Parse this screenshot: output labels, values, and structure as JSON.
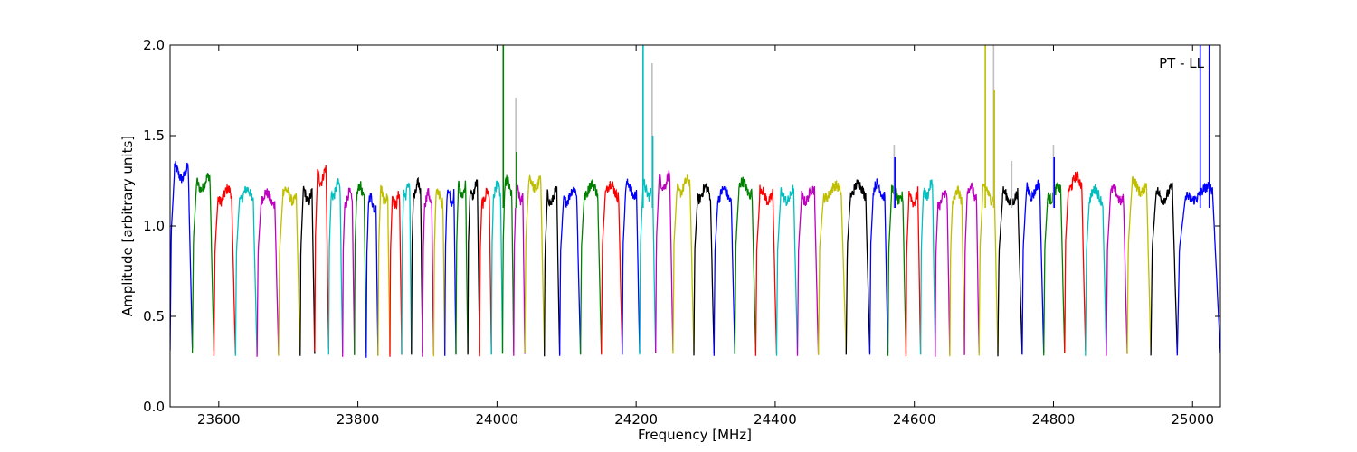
{
  "chart_data": {
    "type": "line",
    "annotation": "PT - LL",
    "xlabel": "Frequency [MHz]",
    "ylabel": "Amplitude [arbitrary units]",
    "xlim": [
      23530,
      25040
    ],
    "ylim": [
      0.0,
      2.0
    ],
    "x_ticks": [
      23600,
      23800,
      24000,
      24200,
      24400,
      24600,
      24800,
      25000
    ],
    "y_ticks": [
      0.0,
      0.5,
      1.0,
      1.5,
      2.0
    ],
    "x_tick_labels": [
      "23600",
      "23800",
      "24000",
      "24200",
      "24400",
      "24600",
      "24800",
      "25000"
    ],
    "y_tick_labels": [
      "0.0",
      "0.5",
      "1.0",
      "1.5",
      "2.0"
    ],
    "grid": false,
    "colors": [
      "#0000ff",
      "#008000",
      "#ff0000",
      "#00bfbf",
      "#bf00bf",
      "#bfbf00",
      "#000000"
    ],
    "ghost_color": "#bfbfbf",
    "channel_width_mhz": 3.5,
    "series": [
      {
        "color": "#0000ff",
        "start": 23530,
        "end": 23562,
        "plateau": 1.3
      },
      {
        "color": "#008000",
        "start": 23562,
        "end": 23593,
        "plateau": 1.24
      },
      {
        "color": "#ff0000",
        "start": 23593,
        "end": 23624,
        "plateau": 1.17
      },
      {
        "color": "#00bfbf",
        "start": 23624,
        "end": 23655,
        "plateau": 1.17
      },
      {
        "color": "#bf00bf",
        "start": 23655,
        "end": 23686,
        "plateau": 1.15
      },
      {
        "color": "#bfbf00",
        "start": 23686,
        "end": 23717,
        "plateau": 1.17
      },
      {
        "color": "#000000",
        "start": 23717,
        "end": 23738,
        "plateau": 1.17
      },
      {
        "color": "#ff0000",
        "start": 23738,
        "end": 23758,
        "plateau": 1.28
      },
      {
        "color": "#00bfbf",
        "start": 23758,
        "end": 23778,
        "plateau": 1.2
      },
      {
        "color": "#bf00bf",
        "start": 23778,
        "end": 23795,
        "plateau": 1.15
      },
      {
        "color": "#008000",
        "start": 23795,
        "end": 23812,
        "plateau": 1.19
      },
      {
        "color": "#0000ff",
        "start": 23812,
        "end": 23829,
        "plateau": 1.13
      },
      {
        "color": "#bfbf00",
        "start": 23829,
        "end": 23846,
        "plateau": 1.17
      },
      {
        "color": "#ff0000",
        "start": 23846,
        "end": 23863,
        "plateau": 1.15
      },
      {
        "color": "#00bfbf",
        "start": 23863,
        "end": 23877,
        "plateau": 1.2
      },
      {
        "color": "#000000",
        "start": 23877,
        "end": 23893,
        "plateau": 1.2
      },
      {
        "color": "#bf00bf",
        "start": 23893,
        "end": 23909,
        "plateau": 1.15
      },
      {
        "color": "#bfbf00",
        "start": 23909,
        "end": 23925,
        "plateau": 1.16
      },
      {
        "color": "#0000ff",
        "start": 23925,
        "end": 23941,
        "plateau": 1.17
      },
      {
        "color": "#008000",
        "start": 23941,
        "end": 23958,
        "plateau": 1.2
      },
      {
        "color": "#000000",
        "start": 23958,
        "end": 23975,
        "plateau": 1.2
      },
      {
        "color": "#ff0000",
        "start": 23975,
        "end": 23992,
        "plateau": 1.16
      },
      {
        "color": "#00bfbf",
        "start": 23992,
        "end": 24008,
        "plateau": 1.2
      },
      {
        "color": "#008000",
        "start": 24008,
        "end": 24024,
        "plateau": 1.22
      },
      {
        "color": "#bf00bf",
        "start": 24024,
        "end": 24040,
        "plateau": 1.17
      },
      {
        "color": "#bfbf00",
        "start": 24040,
        "end": 24068,
        "plateau": 1.24
      },
      {
        "color": "#000000",
        "start": 24068,
        "end": 24090,
        "plateau": 1.16
      },
      {
        "color": "#0000ff",
        "start": 24090,
        "end": 24120,
        "plateau": 1.17
      },
      {
        "color": "#008000",
        "start": 24120,
        "end": 24150,
        "plateau": 1.2
      },
      {
        "color": "#ff0000",
        "start": 24150,
        "end": 24180,
        "plateau": 1.2
      },
      {
        "color": "#0000ff",
        "start": 24180,
        "end": 24205,
        "plateau": 1.2
      },
      {
        "color": "#00bfbf",
        "start": 24205,
        "end": 24228,
        "plateau": 1.2
      },
      {
        "color": "#bf00bf",
        "start": 24228,
        "end": 24253,
        "plateau": 1.25
      },
      {
        "color": "#bfbf00",
        "start": 24253,
        "end": 24283,
        "plateau": 1.22
      },
      {
        "color": "#000000",
        "start": 24283,
        "end": 24312,
        "plateau": 1.18
      },
      {
        "color": "#0000ff",
        "start": 24312,
        "end": 24342,
        "plateau": 1.17
      },
      {
        "color": "#008000",
        "start": 24342,
        "end": 24372,
        "plateau": 1.21
      },
      {
        "color": "#ff0000",
        "start": 24372,
        "end": 24402,
        "plateau": 1.17
      },
      {
        "color": "#00bfbf",
        "start": 24402,
        "end": 24432,
        "plateau": 1.17
      },
      {
        "color": "#bf00bf",
        "start": 24432,
        "end": 24462,
        "plateau": 1.17
      },
      {
        "color": "#bfbf00",
        "start": 24462,
        "end": 24502,
        "plateau": 1.19
      },
      {
        "color": "#000000",
        "start": 24502,
        "end": 24536,
        "plateau": 1.2
      },
      {
        "color": "#0000ff",
        "start": 24536,
        "end": 24562,
        "plateau": 1.2
      },
      {
        "color": "#008000",
        "start": 24562,
        "end": 24588,
        "plateau": 1.17
      },
      {
        "color": "#ff0000",
        "start": 24588,
        "end": 24609,
        "plateau": 1.16
      },
      {
        "color": "#00bfbf",
        "start": 24609,
        "end": 24630,
        "plateau": 1.2
      },
      {
        "color": "#bf00bf",
        "start": 24630,
        "end": 24651,
        "plateau": 1.15
      },
      {
        "color": "#bfbf00",
        "start": 24651,
        "end": 24672,
        "plateau": 1.16
      },
      {
        "color": "#bf00bf",
        "start": 24672,
        "end": 24693,
        "plateau": 1.19
      },
      {
        "color": "#bfbf00",
        "start": 24693,
        "end": 24720,
        "plateau": 1.18
      },
      {
        "color": "#000000",
        "start": 24720,
        "end": 24755,
        "plateau": 1.16
      },
      {
        "color": "#0000ff",
        "start": 24755,
        "end": 24786,
        "plateau": 1.2
      },
      {
        "color": "#008000",
        "start": 24786,
        "end": 24816,
        "plateau": 1.18
      },
      {
        "color": "#ff0000",
        "start": 24816,
        "end": 24846,
        "plateau": 1.24
      },
      {
        "color": "#00bfbf",
        "start": 24846,
        "end": 24876,
        "plateau": 1.17
      },
      {
        "color": "#bf00bf",
        "start": 24876,
        "end": 24906,
        "plateau": 1.17
      },
      {
        "color": "#bfbf00",
        "start": 24906,
        "end": 24940,
        "plateau": 1.22
      },
      {
        "color": "#000000",
        "start": 24940,
        "end": 24978,
        "plateau": 1.18
      },
      {
        "color": "#0000ff",
        "start": 24978,
        "end": 25040,
        "plateau": 1.18
      }
    ],
    "spikes": [
      {
        "x": 24009,
        "y": 2.0,
        "color": "#008000"
      },
      {
        "x": 24027,
        "y": 1.71,
        "color": "#bfbfbf"
      },
      {
        "x": 24028,
        "y": 1.41,
        "color": "#008000"
      },
      {
        "x": 24210,
        "y": 2.0,
        "color": "#00bfbf"
      },
      {
        "x": 24223,
        "y": 1.9,
        "color": "#bfbfbf"
      },
      {
        "x": 24224,
        "y": 1.5,
        "color": "#00bfbf"
      },
      {
        "x": 24571,
        "y": 1.45,
        "color": "#bfbfbf"
      },
      {
        "x": 24572,
        "y": 1.38,
        "color": "#0000ff"
      },
      {
        "x": 24702,
        "y": 2.0,
        "color": "#bfbf00"
      },
      {
        "x": 24714,
        "y": 2.0,
        "color": "#bfbfbf"
      },
      {
        "x": 24715,
        "y": 1.75,
        "color": "#bfbf00"
      },
      {
        "x": 24740,
        "y": 1.36,
        "color": "#bfbfbf"
      },
      {
        "x": 24800,
        "y": 1.45,
        "color": "#bfbfbf"
      },
      {
        "x": 24801,
        "y": 1.38,
        "color": "#0000ff"
      },
      {
        "x": 25011,
        "y": 2.0,
        "color": "#0000ff"
      },
      {
        "x": 25024,
        "y": 2.0,
        "color": "#0000ff"
      }
    ]
  }
}
